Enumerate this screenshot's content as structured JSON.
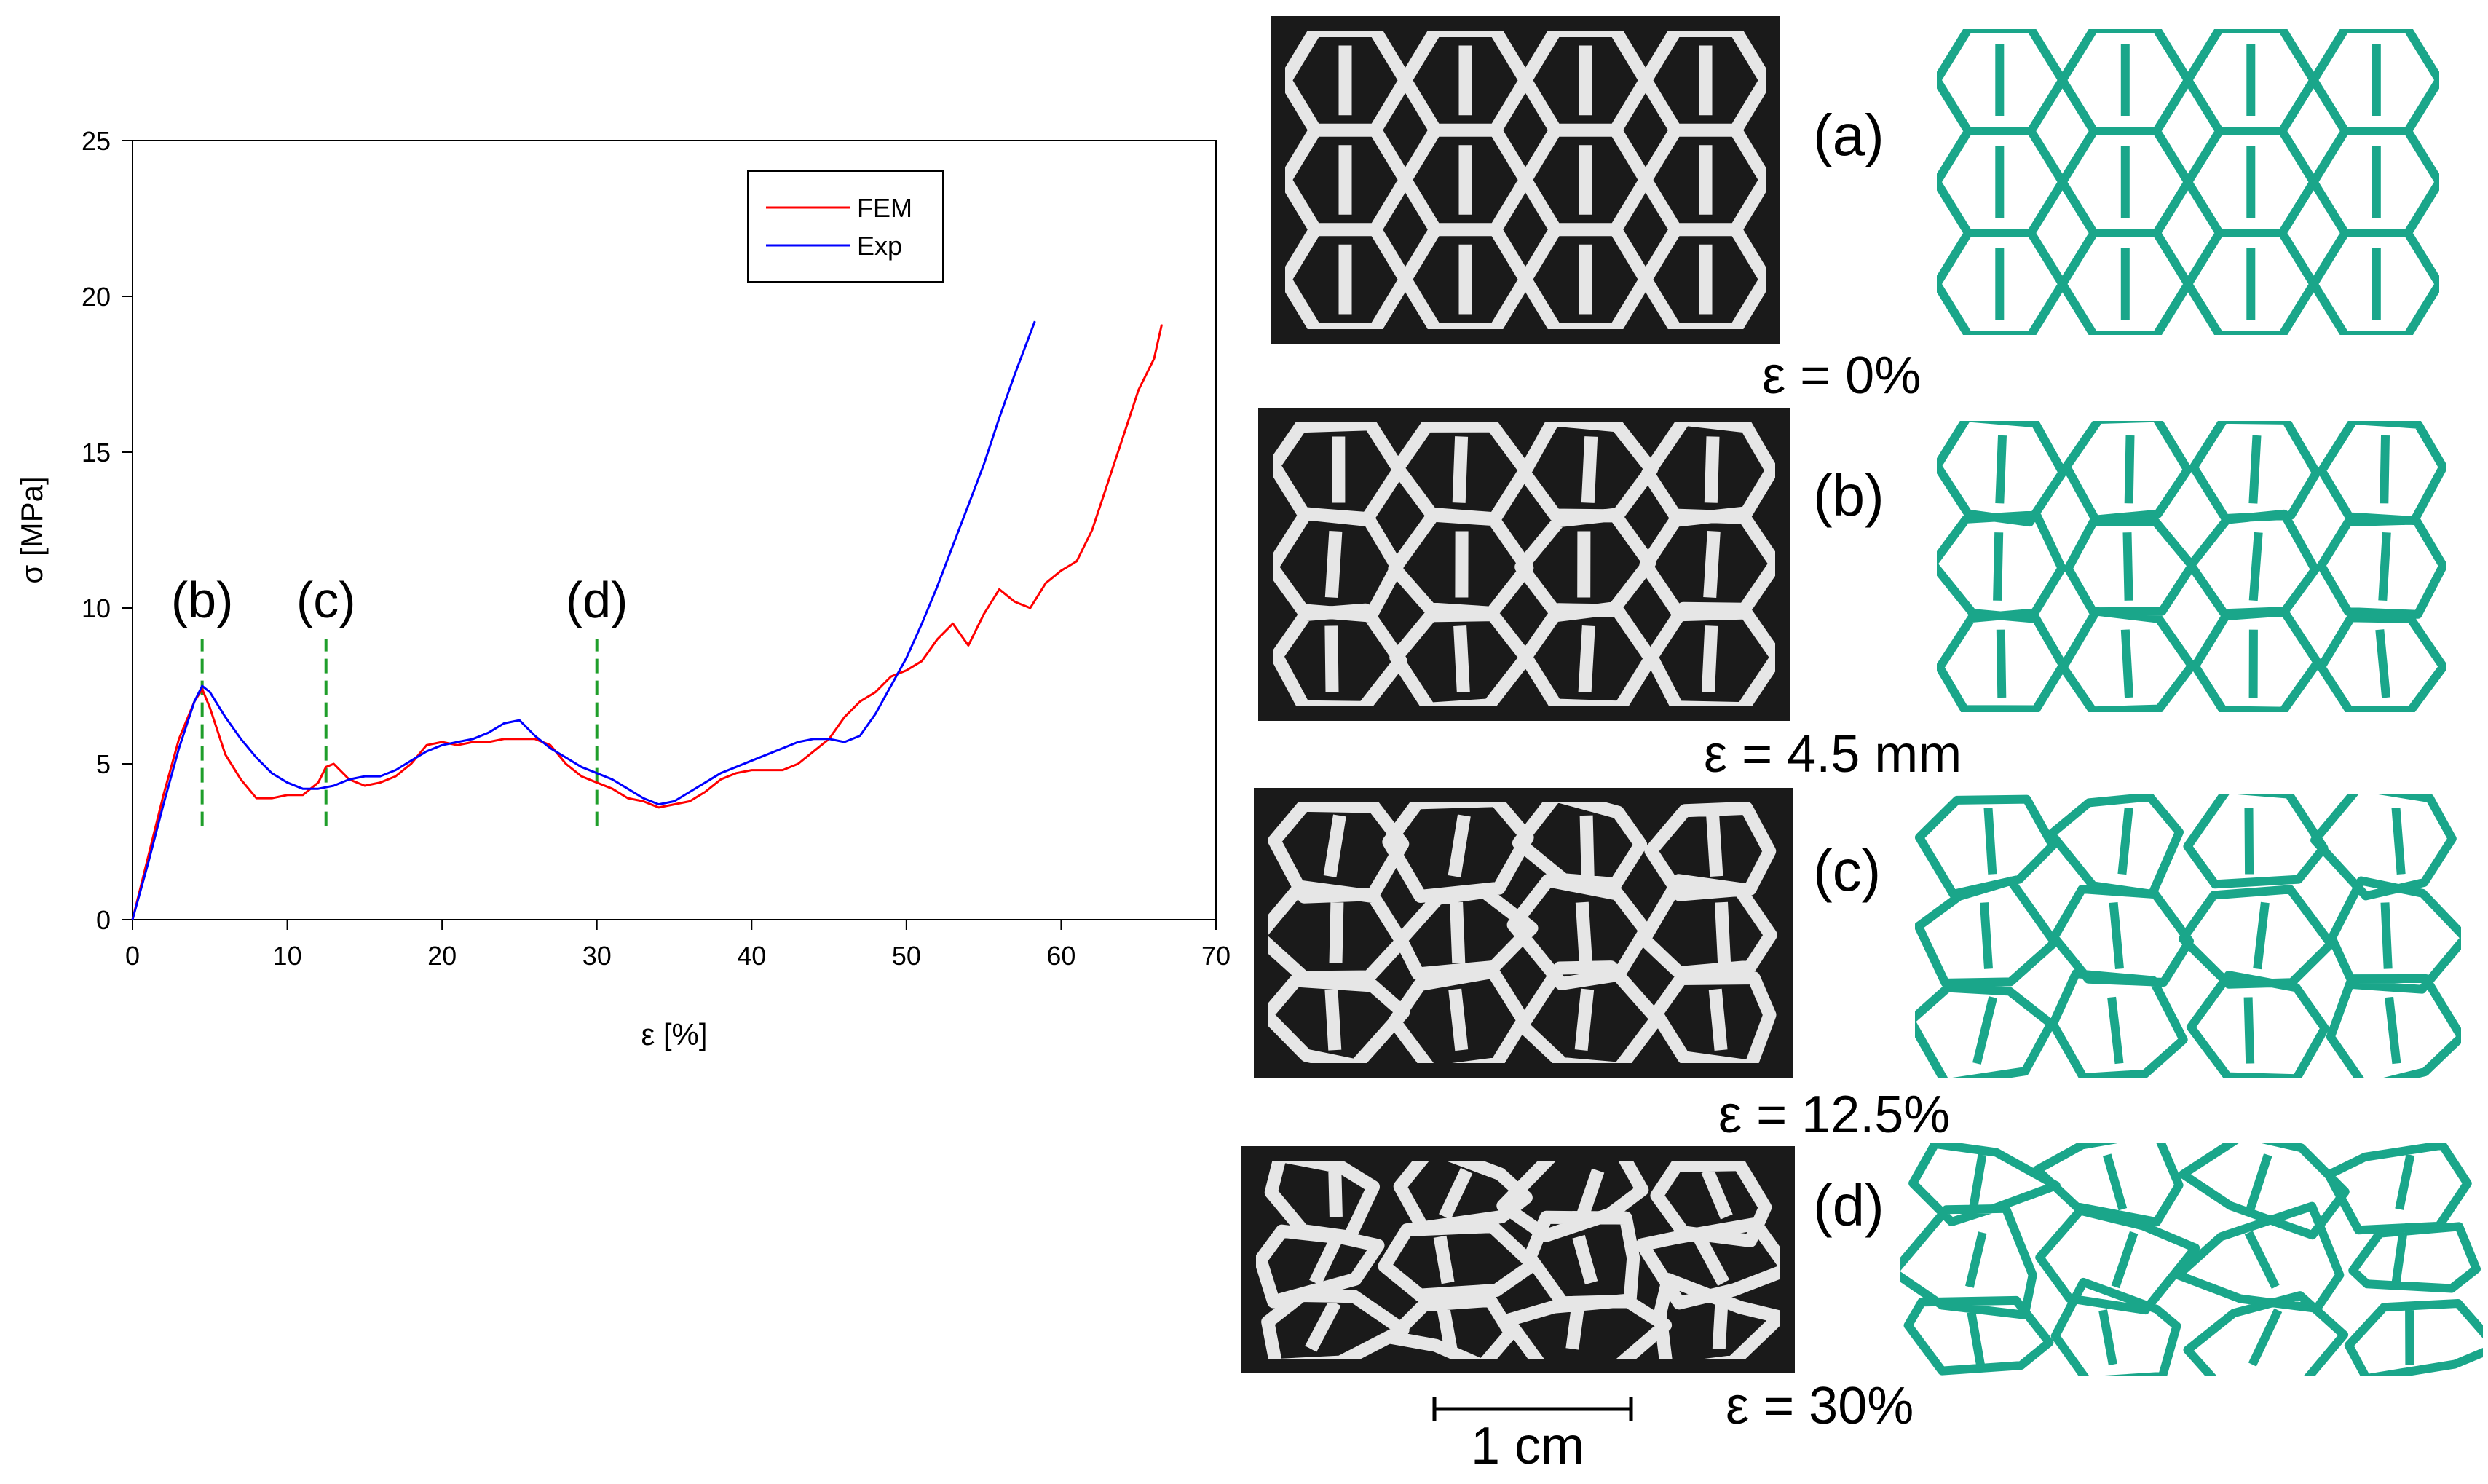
{
  "chart_data": {
    "type": "line",
    "title": "",
    "xlabel": "ε [%]",
    "ylabel": "σ [MPa]",
    "xlim": [
      0,
      70
    ],
    "ylim": [
      0,
      25
    ],
    "xticks": [
      0,
      10,
      20,
      30,
      40,
      50,
      60,
      70
    ],
    "yticks": [
      0,
      5,
      10,
      15,
      20,
      25
    ],
    "grid": false,
    "legend": "top-right",
    "series": [
      {
        "name": "FEM",
        "color": "#ff0000",
        "x": [
          0,
          1,
          2,
          3,
          4,
          4.5,
          5,
          6,
          7,
          8,
          9,
          10,
          11,
          12,
          12.5,
          13,
          14,
          15,
          16,
          17,
          18,
          19,
          20,
          21,
          22,
          23,
          24,
          25,
          26,
          27,
          28,
          29,
          30,
          31,
          32,
          33,
          34,
          35,
          36,
          37,
          38,
          39,
          40,
          41,
          42,
          43,
          44,
          45,
          46,
          47,
          48,
          49,
          50,
          51,
          52,
          53,
          54,
          55,
          56,
          57,
          58,
          59,
          60,
          61,
          62,
          63,
          64,
          65,
          66,
          66.5
        ],
        "y": [
          0,
          2.0,
          4.0,
          5.8,
          7.0,
          7.4,
          6.8,
          5.3,
          4.5,
          3.9,
          3.9,
          4.0,
          4.0,
          4.4,
          4.9,
          5.0,
          4.5,
          4.3,
          4.4,
          4.6,
          5.0,
          5.6,
          5.7,
          5.6,
          5.7,
          5.7,
          5.8,
          5.8,
          5.8,
          5.6,
          5.0,
          4.6,
          4.4,
          4.2,
          3.9,
          3.8,
          3.6,
          3.7,
          3.8,
          4.1,
          4.5,
          4.7,
          4.8,
          4.8,
          4.8,
          5.0,
          5.4,
          5.8,
          6.5,
          7.0,
          7.3,
          7.8,
          8.0,
          8.3,
          9.0,
          9.5,
          8.8,
          9.8,
          10.6,
          10.2,
          10.0,
          10.8,
          11.2,
          11.5,
          12.5,
          14.0,
          15.5,
          17.0,
          18.0,
          19.1
        ]
      },
      {
        "name": "Exp",
        "color": "#0000ff",
        "x": [
          0,
          1,
          2,
          3,
          4,
          4.5,
          5,
          6,
          7,
          8,
          9,
          10,
          11,
          12,
          13,
          14,
          15,
          16,
          17,
          18,
          19,
          20,
          21,
          22,
          23,
          24,
          25,
          26,
          27,
          28,
          29,
          30,
          31,
          32,
          33,
          34,
          35,
          36,
          37,
          38,
          39,
          40,
          41,
          42,
          43,
          44,
          45,
          46,
          47,
          48,
          49,
          50,
          51,
          52,
          53,
          54,
          55,
          56,
          57,
          58.3
        ],
        "y": [
          0,
          1.8,
          3.7,
          5.5,
          7.0,
          7.5,
          7.3,
          6.5,
          5.8,
          5.2,
          4.7,
          4.4,
          4.2,
          4.2,
          4.3,
          4.5,
          4.6,
          4.6,
          4.8,
          5.1,
          5.4,
          5.6,
          5.7,
          5.8,
          6.0,
          6.3,
          6.4,
          5.9,
          5.5,
          5.2,
          4.9,
          4.7,
          4.5,
          4.2,
          3.9,
          3.7,
          3.8,
          4.1,
          4.4,
          4.7,
          4.9,
          5.1,
          5.3,
          5.5,
          5.7,
          5.8,
          5.8,
          5.7,
          5.9,
          6.6,
          7.5,
          8.4,
          9.5,
          10.7,
          12.0,
          13.3,
          14.6,
          16.1,
          17.5,
          19.2
        ]
      }
    ],
    "markers": [
      {
        "label": "(b)",
        "x": 4.5,
        "y_from": 3.0,
        "y_to": 9.0
      },
      {
        "label": "(c)",
        "x": 12.5,
        "y_from": 3.0,
        "y_to": 9.0
      },
      {
        "label": "(d)",
        "x": 30,
        "y_from": 3.0,
        "y_to": 9.0
      }
    ]
  },
  "figure": {
    "stages": [
      {
        "label": "(a)",
        "strain": "ε = 0%"
      },
      {
        "label": "(b)",
        "strain": "ε = 4.5 mm"
      },
      {
        "label": "(c)",
        "strain": "ε = 12.5%"
      },
      {
        "label": "(d)",
        "strain": "ε = 30%"
      }
    ],
    "scale_bar": "1 cm",
    "fem_color": "#1aa68a"
  }
}
